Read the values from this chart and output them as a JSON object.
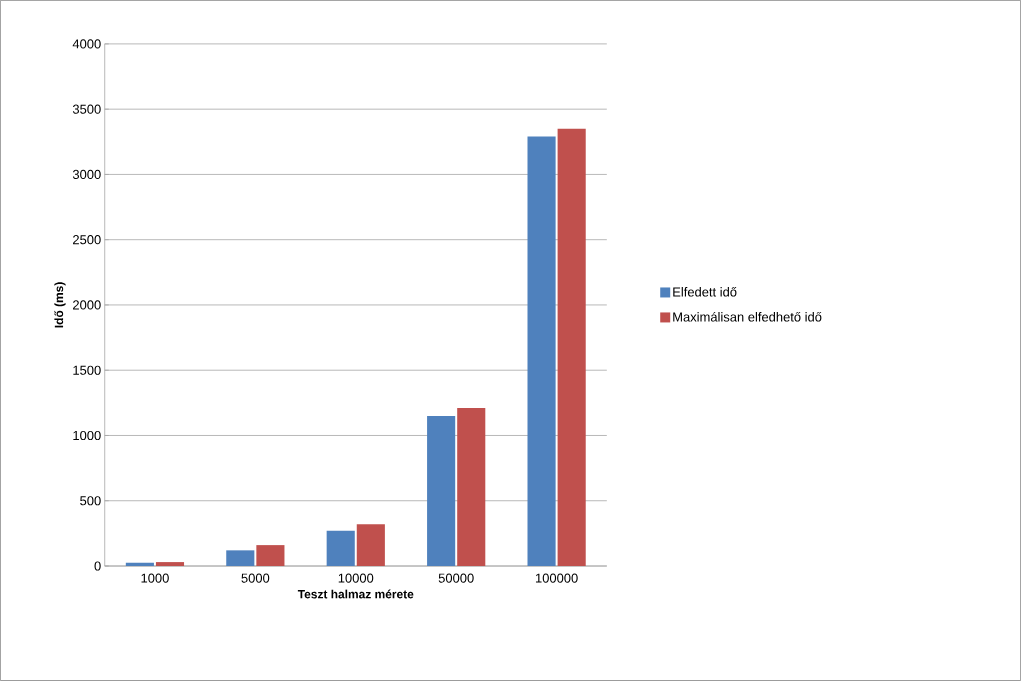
{
  "chart_data": {
    "type": "bar",
    "xlabel": "Teszt halmaz mérete",
    "ylabel": "Idő (ms)",
    "categories": [
      "1000",
      "5000",
      "10000",
      "50000",
      "100000"
    ],
    "series": [
      {
        "name": "Elfedett idő",
        "color": "#4f81bd",
        "values": [
          25,
          120,
          270,
          1150,
          3290
        ]
      },
      {
        "name": "Maximálisan elfedhető idő",
        "color": "#c0504d",
        "values": [
          30,
          160,
          320,
          1210,
          3350
        ]
      }
    ],
    "ylim": [
      0,
      4000
    ],
    "yticks": [
      0,
      500,
      1000,
      1500,
      2000,
      2500,
      3000,
      3500,
      4000
    ],
    "grid": "y",
    "legend": "right"
  }
}
